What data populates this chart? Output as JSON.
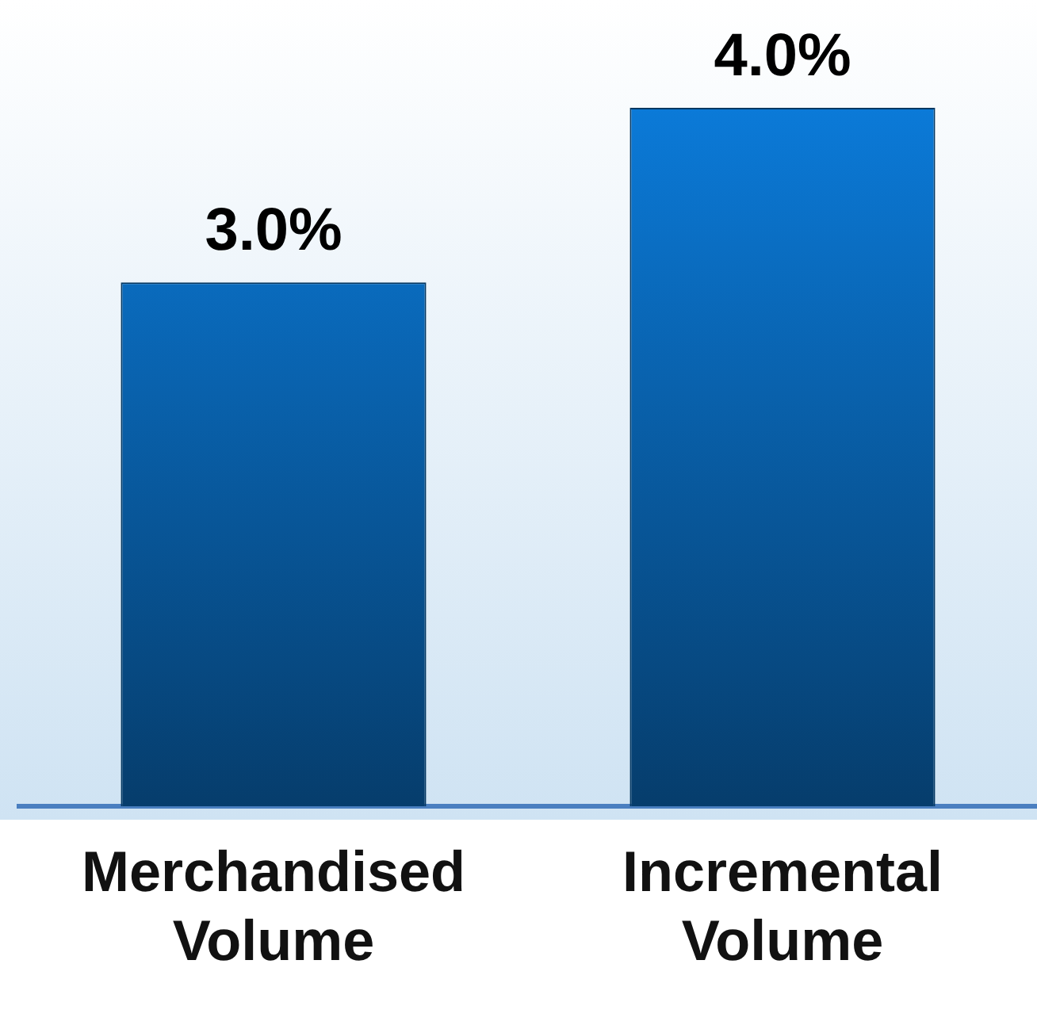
{
  "chart_data": {
    "type": "bar",
    "categories": [
      "Merchandised Volume",
      "Incremental Volume"
    ],
    "values": [
      3.0,
      4.0
    ],
    "color": "#0a6fc4",
    "value_labels": [
      "3.0%",
      "4.0%"
    ]
  }
}
